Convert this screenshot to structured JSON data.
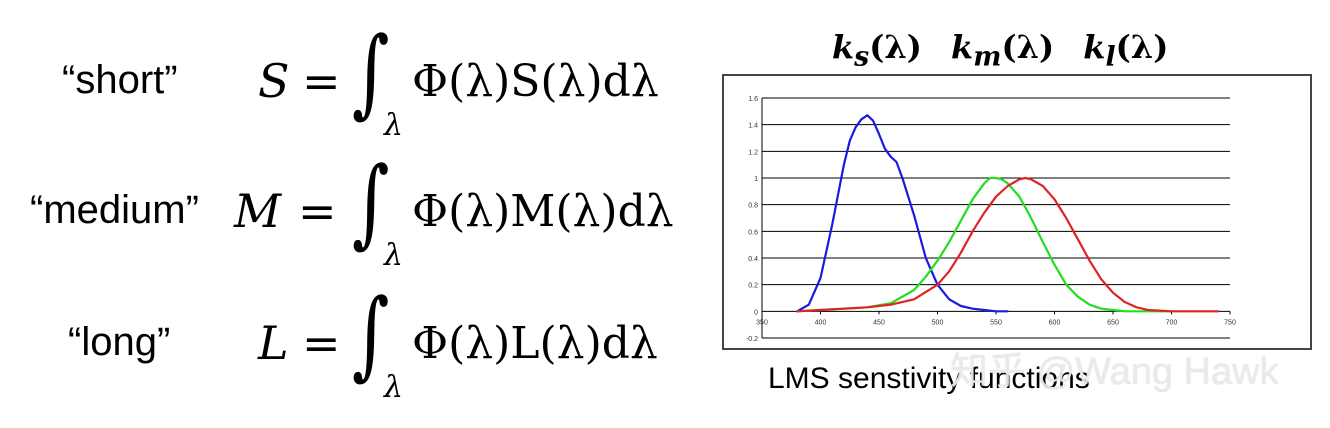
{
  "equations": [
    {
      "label": "“short”",
      "lhs": "S",
      "eq": "=",
      "integral": "∫",
      "sub": "λ",
      "integrand": "Φ(λ)S(λ)dλ"
    },
    {
      "label": "“medium”",
      "lhs": "M",
      "eq": "=",
      "integral": "∫",
      "sub": "λ",
      "integrand": "Φ(λ)M(λ)dλ"
    },
    {
      "label": "“long”",
      "lhs": "L",
      "eq": "=",
      "integral": "∫",
      "sub": "λ",
      "integrand": "Φ(λ)L(λ)dλ"
    }
  ],
  "chart_title": {
    "ks": "k",
    "ks_sub": "s",
    "km": "k",
    "km_sub": "m",
    "kl": "k",
    "kl_sub": "l",
    "arg": "(λ)"
  },
  "caption": "LMS senstivity functions",
  "watermark": "知乎 @Wang Hawk",
  "chart_data": {
    "type": "line",
    "title": "",
    "xlabel": "",
    "ylabel": "",
    "xlim": [
      350,
      750
    ],
    "ylim": [
      -0.2,
      1.6
    ],
    "x_ticks": [
      "350",
      "400",
      "450",
      "500",
      "550",
      "600",
      "650",
      "700",
      "750"
    ],
    "y_ticks": [
      "1.6",
      "1.4",
      "1.2",
      "1",
      "0.8",
      "0.6",
      "0.4",
      "0.2",
      "0",
      "-0.2"
    ],
    "grid": "horizontal",
    "series": [
      {
        "color": "#1a1ae0",
        "x": [
          380,
          390,
          400,
          410,
          420,
          425,
          430,
          435,
          440,
          445,
          450,
          455,
          460,
          465,
          470,
          480,
          490,
          500,
          510,
          520,
          530,
          540,
          550,
          560
        ],
        "y": [
          0.0,
          0.05,
          0.25,
          0.65,
          1.1,
          1.28,
          1.38,
          1.44,
          1.47,
          1.43,
          1.33,
          1.22,
          1.16,
          1.12,
          1.0,
          0.72,
          0.4,
          0.2,
          0.09,
          0.04,
          0.02,
          0.01,
          0.0,
          0.0
        ]
      },
      {
        "color": "#22dd22",
        "x": [
          380,
          400,
          420,
          440,
          460,
          480,
          490,
          500,
          510,
          520,
          530,
          540,
          545,
          550,
          555,
          560,
          570,
          580,
          590,
          600,
          610,
          620,
          630,
          640,
          650,
          660,
          680,
          700
        ],
        "y": [
          0.0,
          0.01,
          0.02,
          0.03,
          0.06,
          0.16,
          0.26,
          0.38,
          0.52,
          0.68,
          0.84,
          0.96,
          1.0,
          1.0,
          0.99,
          0.96,
          0.86,
          0.7,
          0.52,
          0.35,
          0.2,
          0.11,
          0.05,
          0.02,
          0.01,
          0.0,
          0.0,
          0.0
        ]
      },
      {
        "color": "#e02222",
        "x": [
          380,
          400,
          420,
          440,
          460,
          480,
          500,
          510,
          520,
          530,
          540,
          550,
          560,
          570,
          575,
          580,
          590,
          600,
          610,
          620,
          630,
          640,
          650,
          660,
          670,
          680,
          700,
          720,
          740
        ],
        "y": [
          0.0,
          0.01,
          0.02,
          0.03,
          0.05,
          0.09,
          0.2,
          0.3,
          0.44,
          0.6,
          0.74,
          0.86,
          0.94,
          0.99,
          1.0,
          0.99,
          0.94,
          0.84,
          0.7,
          0.54,
          0.38,
          0.24,
          0.14,
          0.07,
          0.03,
          0.01,
          0.0,
          0.0,
          0.0
        ]
      }
    ]
  }
}
